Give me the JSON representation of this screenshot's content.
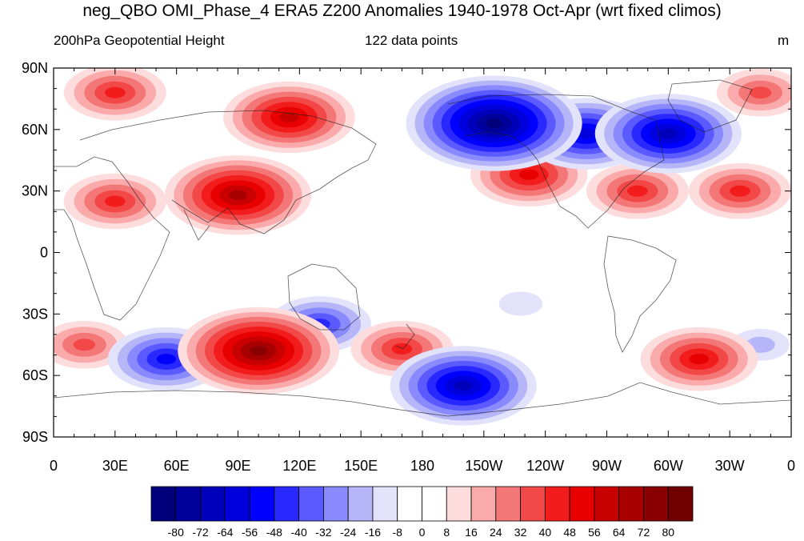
{
  "title": "neg_QBO OMI_Phase_4 ERA5 Z200 Anomalies 1940-1978 Oct-Apr (wrt fixed climos)",
  "subtitle_left": "200hPa Geopotential Height",
  "subtitle_center": "122 data points",
  "units": "m",
  "map": {
    "projection": "cylindrical equidistant",
    "lon_range": [
      0,
      360
    ],
    "lat_range": [
      -90,
      90
    ],
    "lat_ticks": [
      "90N",
      "60N",
      "30N",
      "0",
      "30S",
      "60S",
      "90S"
    ],
    "lon_ticks": [
      "0",
      "30E",
      "60E",
      "90E",
      "120E",
      "150E",
      "180",
      "150W",
      "120W",
      "90W",
      "60W",
      "30W",
      "0"
    ]
  },
  "colorbar": {
    "levels": [
      "-80",
      "-72",
      "-64",
      "-56",
      "-48",
      "-40",
      "-32",
      "-24",
      "-16",
      "-8",
      "0",
      "8",
      "16",
      "24",
      "32",
      "40",
      "48",
      "56",
      "64",
      "72",
      "80"
    ],
    "colors": [
      "#00007a",
      "#00009a",
      "#0000bb",
      "#0000dd",
      "#0000ff",
      "#2828ff",
      "#5a5aff",
      "#8a8aff",
      "#b5b5f8",
      "#e2e2fa",
      "#ffffff",
      "#ffffff",
      "#fcdcdc",
      "#faaaaa",
      "#f47777",
      "#f24848",
      "#f21c1c",
      "#e80000",
      "#c80000",
      "#a80000",
      "#8a0000",
      "#700000"
    ]
  },
  "anomaly_centers": [
    {
      "lon": 30,
      "lat": 78,
      "value": 40
    },
    {
      "lon": 115,
      "lat": 66,
      "value": 56
    },
    {
      "lon": 90,
      "lat": 28,
      "value": 64
    },
    {
      "lon": 30,
      "lat": 25,
      "value": 40
    },
    {
      "lon": 215,
      "lat": 63,
      "value": -80
    },
    {
      "lon": 260,
      "lat": 58,
      "value": -56
    },
    {
      "lon": 300,
      "lat": 58,
      "value": -64
    },
    {
      "lon": 232,
      "lat": 38,
      "value": 48
    },
    {
      "lon": 285,
      "lat": 30,
      "value": 40
    },
    {
      "lon": 335,
      "lat": 30,
      "value": 40
    },
    {
      "lon": 345,
      "lat": 78,
      "value": 32
    },
    {
      "lon": 100,
      "lat": -48,
      "value": 72
    },
    {
      "lon": 55,
      "lat": -52,
      "value": -48
    },
    {
      "lon": 130,
      "lat": -35,
      "value": -40
    },
    {
      "lon": 170,
      "lat": -47,
      "value": 40
    },
    {
      "lon": 200,
      "lat": -65,
      "value": -64
    },
    {
      "lon": 315,
      "lat": -52,
      "value": 48
    },
    {
      "lon": 15,
      "lat": -45,
      "value": 32
    },
    {
      "lon": 345,
      "lat": -45,
      "value": -16
    },
    {
      "lon": 228,
      "lat": -25,
      "value": -8
    }
  ]
}
